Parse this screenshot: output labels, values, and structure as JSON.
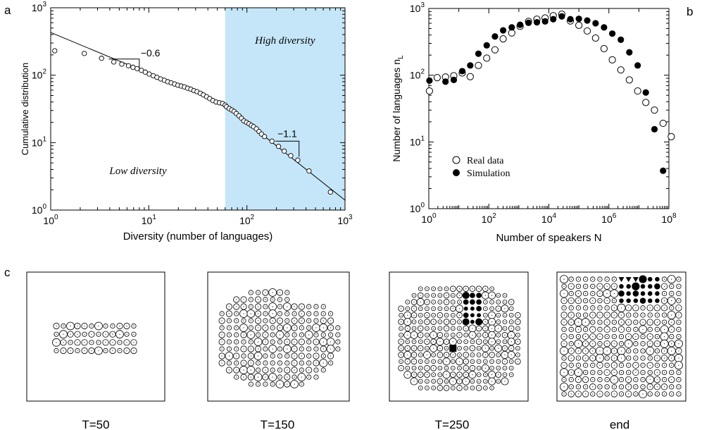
{
  "panel_labels": {
    "a": "a",
    "b": "b",
    "c": "c"
  },
  "chart_data": [
    {
      "id": "panel-a",
      "type": "scatter",
      "xscale": "log",
      "yscale": "log",
      "xlim": [
        1,
        1000
      ],
      "ylim": [
        1,
        1000
      ],
      "xlabel": "Diversity (number of languages)",
      "ylabel": "Cumulative distribution",
      "x_ticks": [
        "10^0",
        "10^1",
        "10^2",
        "10^3"
      ],
      "y_ticks": [
        "10^0",
        "10^1",
        "10^2",
        "10^3"
      ],
      "shaded_region": {
        "x_from": 60,
        "x_to": 1000,
        "color": "#c5e6f8",
        "label": "High diversity"
      },
      "low_region_label": "Low diversity",
      "fit_lines": [
        {
          "slope_label": "−0.6",
          "points": [
            [
              1,
              430
            ],
            [
              60,
              36
            ]
          ]
        },
        {
          "slope_label": "−1.1",
          "points": [
            [
              60,
              36
            ],
            [
              1000,
              1.4
            ]
          ]
        }
      ],
      "series": [
        {
          "name": "cumulative distribution",
          "marker": "open-circle",
          "points": [
            [
              1.1,
              230
            ],
            [
              2.2,
              210
            ],
            [
              3.3,
              178
            ],
            [
              4.4,
              157
            ],
            [
              5.3,
              146
            ],
            [
              6.2,
              138
            ],
            [
              6.9,
              131
            ],
            [
              7.6,
              125
            ],
            [
              8.4,
              118
            ],
            [
              9.2,
              111
            ],
            [
              10.1,
              104
            ],
            [
              11.1,
              98
            ],
            [
              12.1,
              93
            ],
            [
              13.2,
              88
            ],
            [
              14.4,
              84
            ],
            [
              15.6,
              80
            ],
            [
              16.9,
              77
            ],
            [
              18.3,
              74
            ],
            [
              19.8,
              71
            ],
            [
              21.4,
              69
            ],
            [
              23.1,
              67
            ],
            [
              24.9,
              64
            ],
            [
              26.8,
              62
            ],
            [
              28.8,
              59
            ],
            [
              31,
              57
            ],
            [
              33.5,
              54
            ],
            [
              36,
              51
            ],
            [
              38.8,
              48
            ],
            [
              41.8,
              45
            ],
            [
              45,
              42
            ],
            [
              48.6,
              40
            ],
            [
              52.4,
              39
            ],
            [
              56.5,
              38
            ],
            [
              60,
              36
            ],
            [
              62,
              34
            ],
            [
              66,
              32
            ],
            [
              70,
              30.5
            ],
            [
              74,
              29
            ],
            [
              78,
              27
            ],
            [
              83,
              25
            ],
            [
              88,
              23
            ],
            [
              93,
              21
            ],
            [
              99,
              20
            ],
            [
              105,
              19
            ],
            [
              111,
              18
            ],
            [
              117,
              17.2
            ],
            [
              125,
              16
            ],
            [
              133,
              14.6
            ],
            [
              141,
              13.4
            ],
            [
              151,
              12.3
            ],
            [
              180,
              10.5
            ],
            [
              210,
              8.8
            ],
            [
              240,
              7.5
            ],
            [
              280,
              6.4
            ],
            [
              330,
              5.5
            ],
            [
              430,
              3.8
            ],
            [
              710,
              1.85
            ]
          ]
        }
      ]
    },
    {
      "id": "panel-b",
      "type": "scatter",
      "xscale": "log",
      "yscale": "log",
      "xlim": [
        1,
        100000000
      ],
      "ylim": [
        1,
        1000
      ],
      "xlabel": "Number of speakers N",
      "ylabel": "Number of languages n",
      "ylabel_subscript": "L",
      "x_ticks": [
        "10^0",
        "10^2",
        "10^4",
        "10^6",
        "10^8"
      ],
      "y_ticks": [
        "10^0",
        "10^1",
        "10^2",
        "10^3"
      ],
      "legend_position": "lower-left",
      "series": [
        {
          "name": "Real data",
          "marker": "open-circle",
          "points": [
            [
              1.05,
              58
            ],
            [
              1.9,
              92
            ],
            [
              3.6,
              94
            ],
            [
              6.8,
              98
            ],
            [
              13,
              108
            ],
            [
              24,
              95
            ],
            [
              45,
              140
            ],
            [
              85,
              180
            ],
            [
              160,
              240
            ],
            [
              300,
              350
            ],
            [
              580,
              430
            ],
            [
              1100,
              540
            ],
            [
              2100,
              640
            ],
            [
              4000,
              690
            ],
            [
              7500,
              720
            ],
            [
              14000,
              780
            ],
            [
              27000,
              820
            ],
            [
              52000,
              650
            ],
            [
              100000,
              560
            ],
            [
              190000,
              460
            ],
            [
              360000,
              360
            ],
            [
              690000,
              250
            ],
            [
              1300000,
              170
            ],
            [
              2500000,
              120
            ],
            [
              4800000,
              85
            ],
            [
              9100000,
              58
            ],
            [
              17000000,
              39
            ],
            [
              33000000,
              30
            ],
            [
              64000000,
              19
            ],
            [
              120000000,
              12
            ]
          ]
        },
        {
          "name": "Simulation",
          "marker": "filled-circle",
          "points": [
            [
              1.05,
              83
            ],
            [
              3.6,
              80
            ],
            [
              6.8,
              85
            ],
            [
              13,
              115
            ],
            [
              24,
              140
            ],
            [
              45,
              210
            ],
            [
              85,
              280
            ],
            [
              160,
              380
            ],
            [
              300,
              470
            ],
            [
              580,
              520
            ],
            [
              1100,
              570
            ],
            [
              2100,
              610
            ],
            [
              4000,
              620
            ],
            [
              7500,
              640
            ],
            [
              14000,
              690
            ],
            [
              27000,
              760
            ],
            [
              52000,
              690
            ],
            [
              100000,
              700
            ],
            [
              190000,
              660
            ],
            [
              360000,
              600
            ],
            [
              690000,
              520
            ],
            [
              1300000,
              420
            ],
            [
              2500000,
              340
            ],
            [
              4800000,
              220
            ],
            [
              9100000,
              140
            ],
            [
              17000000,
              55
            ],
            [
              33000000,
              15.5
            ],
            [
              64000000,
              3.7
            ]
          ]
        }
      ]
    }
  ],
  "snapshots": [
    {
      "label": "T=50"
    },
    {
      "label": "T=150"
    },
    {
      "label": "T=250"
    },
    {
      "label": "end"
    }
  ]
}
